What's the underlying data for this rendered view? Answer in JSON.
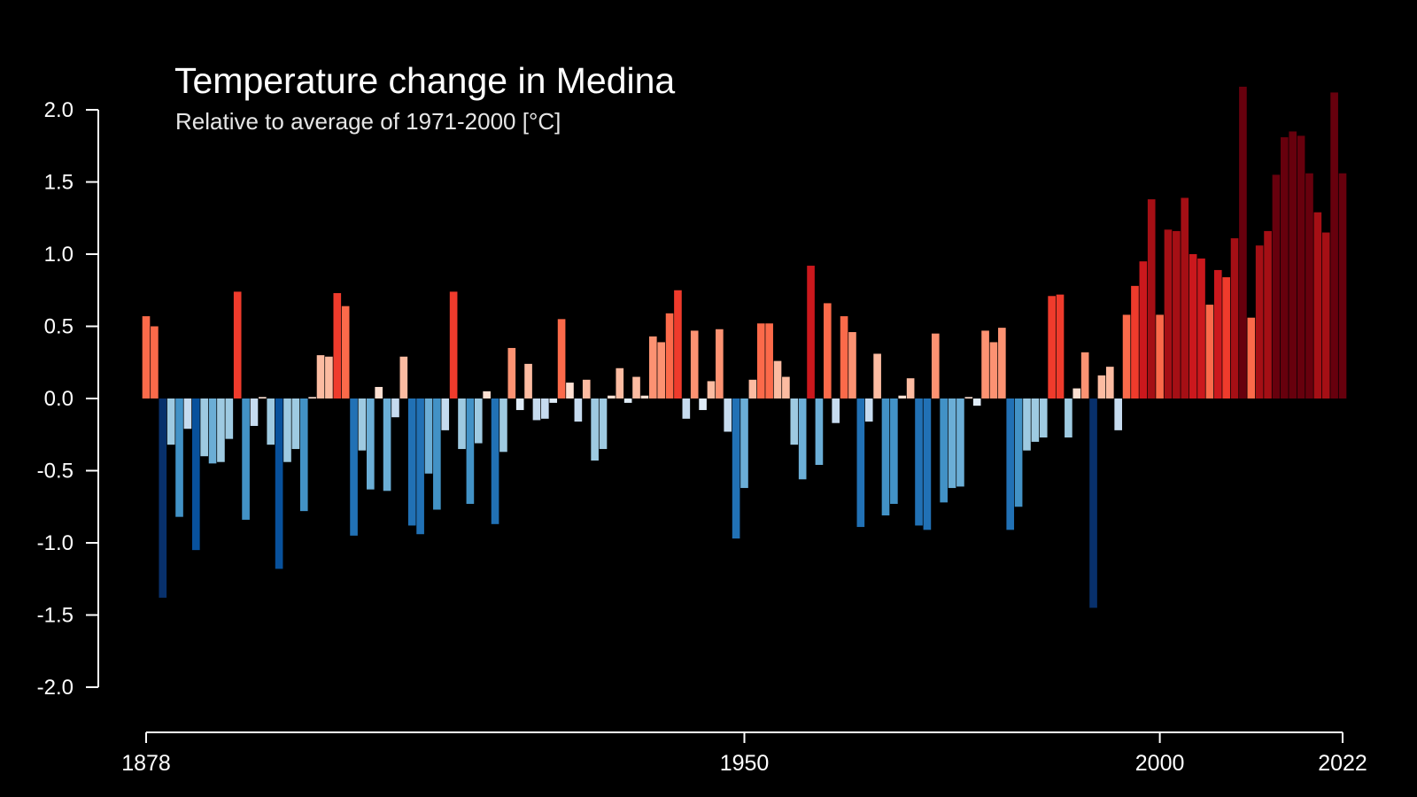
{
  "title": "Temperature change in Medina",
  "subtitle": "Relative to average of 1971-2000  [°C]",
  "colors": {
    "background": "#000000",
    "axis": "#ffffff"
  },
  "chart_data": {
    "type": "bar",
    "title": "Temperature change in Medina",
    "subtitle": "Relative to average of 1971-2000  [°C]",
    "xlabel": "",
    "ylabel": "",
    "xlim": [
      1878,
      2022
    ],
    "ylim": [
      -2.0,
      2.0
    ],
    "yticks": [
      2.0,
      1.5,
      1.0,
      0.5,
      0.0,
      -0.5,
      -1.0,
      -1.5,
      -2.0
    ],
    "ytick_labels": [
      "2.0",
      "1.5",
      "1.0",
      "0.5",
      "0.0",
      "-0.5",
      "-1.0",
      "-1.5",
      "-2.0"
    ],
    "xticks": [
      1878,
      1950,
      2000,
      2022
    ],
    "xtick_labels": [
      "1878",
      "1950",
      "2000",
      "2022"
    ],
    "grid": false,
    "legend": "none",
    "color_scale": {
      "cold": [
        "#08306b",
        "#08519c",
        "#2171b5",
        "#4292c6",
        "#6baed6",
        "#9ecae1",
        "#c6dbef",
        "#deebf7"
      ],
      "warm": [
        "#fee0d2",
        "#fcbba1",
        "#fc9272",
        "#fb6a4a",
        "#ef3b2c",
        "#cb181d",
        "#a50f15",
        "#67000d"
      ]
    },
    "x": [
      1878,
      1879,
      1880,
      1881,
      1882,
      1883,
      1884,
      1885,
      1886,
      1887,
      1888,
      1889,
      1890,
      1891,
      1892,
      1893,
      1894,
      1895,
      1896,
      1897,
      1898,
      1899,
      1900,
      1901,
      1902,
      1903,
      1904,
      1905,
      1906,
      1907,
      1908,
      1909,
      1910,
      1911,
      1912,
      1913,
      1914,
      1915,
      1916,
      1917,
      1918,
      1919,
      1920,
      1921,
      1922,
      1923,
      1924,
      1925,
      1926,
      1927,
      1928,
      1929,
      1930,
      1931,
      1932,
      1933,
      1934,
      1935,
      1936,
      1937,
      1938,
      1939,
      1940,
      1941,
      1942,
      1943,
      1944,
      1945,
      1946,
      1947,
      1948,
      1949,
      1950,
      1951,
      1952,
      1953,
      1954,
      1955,
      1956,
      1957,
      1958,
      1959,
      1960,
      1961,
      1962,
      1963,
      1964,
      1965,
      1966,
      1967,
      1968,
      1969,
      1970,
      1971,
      1972,
      1973,
      1974,
      1975,
      1976,
      1977,
      1978,
      1979,
      1980,
      1981,
      1982,
      1983,
      1984,
      1985,
      1986,
      1987,
      1988,
      1989,
      1990,
      1991,
      1992,
      1993,
      1994,
      1995,
      1996,
      1997,
      1998,
      1999,
      2000,
      2001,
      2002,
      2003,
      2004,
      2005,
      2006,
      2007,
      2008,
      2009,
      2010,
      2011,
      2012,
      2013,
      2014,
      2015,
      2016,
      2017,
      2018,
      2019,
      2020,
      2021,
      2022
    ],
    "values": [
      0.57,
      0.5,
      -1.38,
      -0.32,
      -0.82,
      -0.21,
      -1.05,
      -0.4,
      -0.45,
      -0.44,
      -0.28,
      0.74,
      -0.84,
      -0.19,
      0.01,
      -0.32,
      -1.18,
      -0.44,
      -0.35,
      -0.78,
      0.01,
      0.3,
      0.29,
      0.73,
      0.64,
      -0.95,
      -0.36,
      -0.63,
      0.08,
      -0.64,
      -0.13,
      0.29,
      -0.88,
      -0.94,
      -0.52,
      -0.77,
      -0.22,
      0.74,
      -0.35,
      -0.73,
      -0.31,
      0.05,
      -0.87,
      -0.37,
      0.35,
      -0.08,
      0.24,
      -0.15,
      -0.14,
      -0.03,
      0.55,
      0.11,
      -0.16,
      0.13,
      -0.43,
      -0.35,
      0.02,
      0.21,
      -0.03,
      0.15,
      0.02,
      0.43,
      0.39,
      0.59,
      0.75,
      -0.14,
      0.47,
      -0.08,
      0.12,
      0.48,
      -0.23,
      -0.97,
      -0.62,
      0.13,
      0.52,
      0.52,
      0.26,
      0.15,
      -0.32,
      -0.56,
      0.92,
      -0.46,
      0.66,
      -0.17,
      0.57,
      0.46,
      -0.89,
      -0.16,
      0.31,
      -0.81,
      -0.73,
      0.02,
      0.14,
      -0.88,
      -0.91,
      0.45,
      -0.72,
      -0.62,
      -0.61,
      0.01,
      -0.05,
      0.47,
      0.39,
      0.49,
      -0.91,
      -0.75,
      -0.36,
      -0.3,
      -0.27,
      0.71,
      0.72,
      -0.27,
      0.07,
      0.32,
      -1.45,
      0.16,
      0.22,
      -0.22,
      0.58,
      0.78,
      0.95,
      1.38,
      0.58,
      1.17,
      1.16,
      1.39,
      1.0,
      0.97,
      0.65,
      0.89,
      0.84,
      1.11,
      2.16,
      0.56,
      1.06,
      1.16,
      1.55,
      1.81,
      1.85,
      1.82,
      1.56,
      1.29,
      1.15,
      2.12,
      1.56
    ]
  }
}
